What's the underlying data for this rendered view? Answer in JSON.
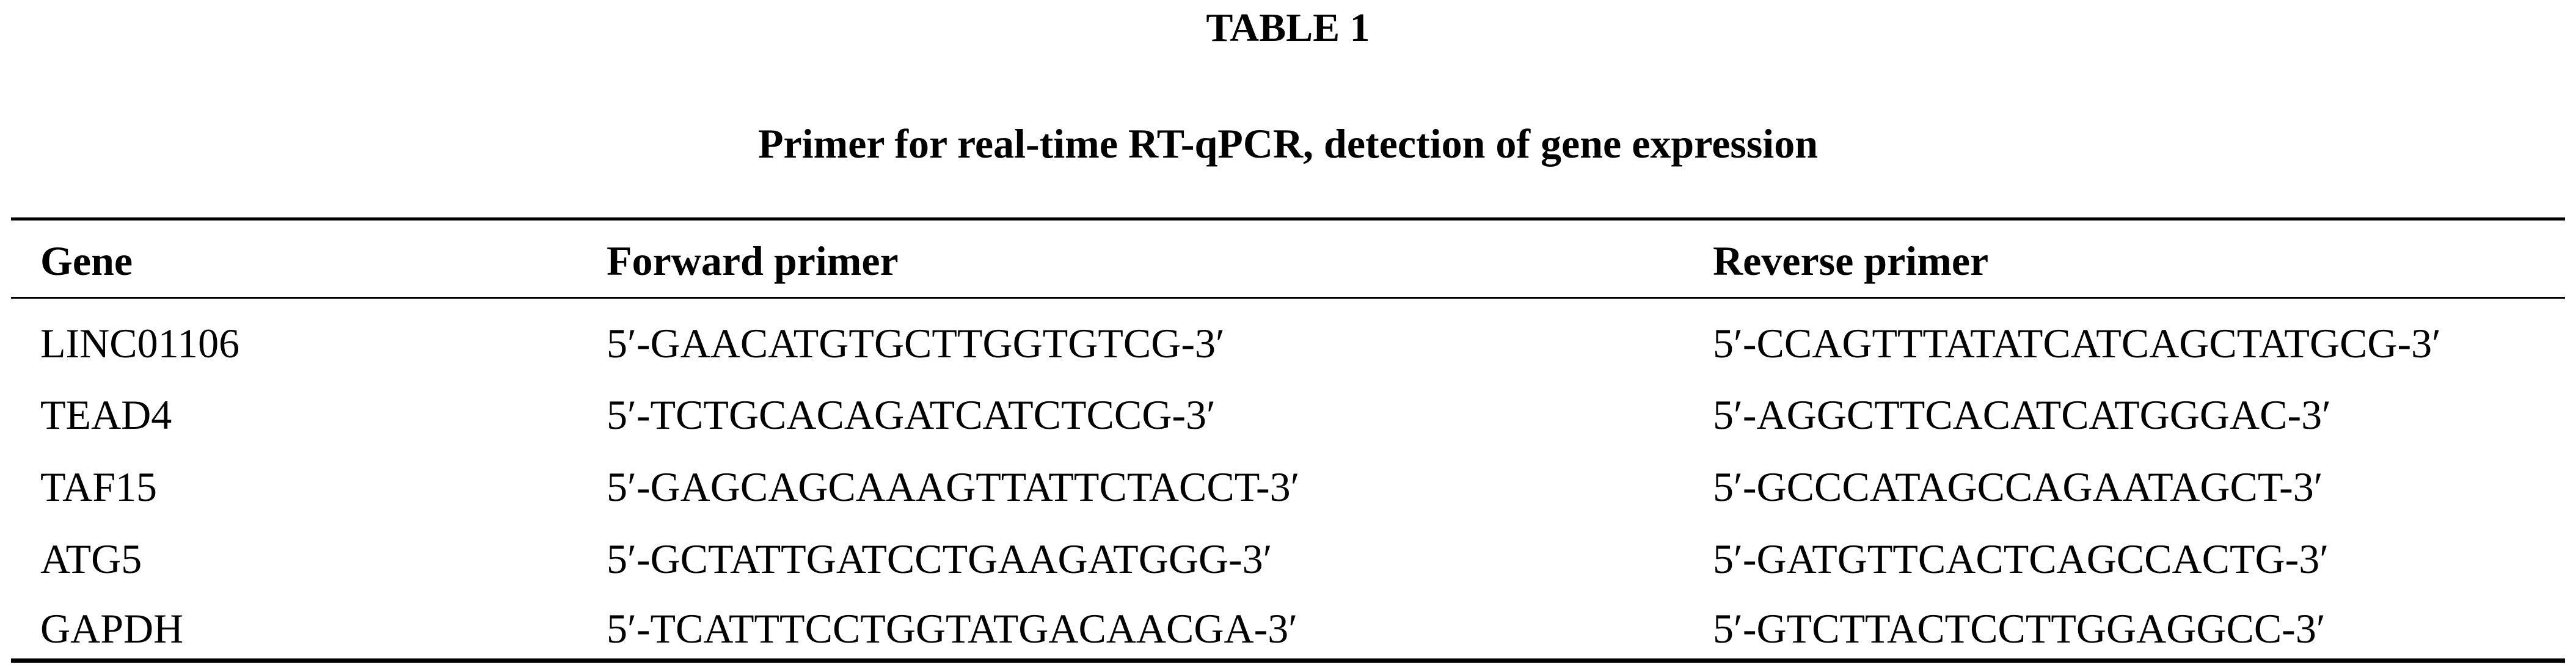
{
  "table_label": "TABLE 1",
  "caption": "Primer for real-time RT-qPCR, detection of gene expression",
  "columns": [
    "Gene",
    "Forward primer",
    "Reverse primer"
  ],
  "rows": [
    [
      "LINC01106",
      "5′-GAACATGTGCTTGGTGTCG-3′",
      "5′-CCAGTTTATATCATCAGCTATGCG-3′"
    ],
    [
      "TEAD4",
      "5′-TCTGCACAGATCATCTCCG-3′",
      "5′-AGGCTTCACATCATGGGAC-3′"
    ],
    [
      "TAF15",
      "5′-GAGCAGCAAAGTTATTCTACCT-3′",
      "5′-GCCCATAGCCAGAATAGCT-3′"
    ],
    [
      "ATG5",
      "5′-GCTATTGATCCTGAAGATGGG-3′",
      "5′-GATGTTCACTCAGCCACTG-3′"
    ],
    [
      "GAPDH",
      "5′-TCATTTCCTGGTATGACAACGA-3′",
      "5′-GTCTTACTCCTTGGAGGCC-3′"
    ]
  ]
}
